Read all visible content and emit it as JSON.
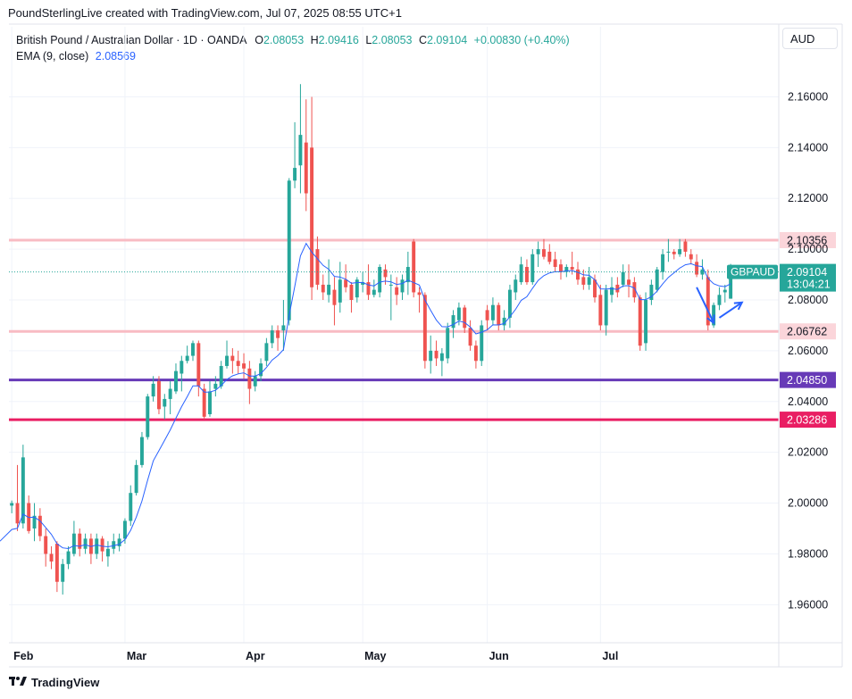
{
  "header": {
    "attribution": "PoundSterlingLive created with TradingView.com, Jul 07, 2025 08:55 UTC+1"
  },
  "legend": {
    "symbol_line": "British Pound / Australian Dollar · 1D · OANDA",
    "o_label": "O",
    "o_value": "2.08053",
    "h_label": "H",
    "h_value": "2.09416",
    "l_label": "L",
    "l_value": "2.08053",
    "c_label": "C",
    "c_value": "2.09104",
    "change": "+0.00830 (+0.40%)",
    "ema_label": "EMA (9, close)",
    "ema_value": "2.08569"
  },
  "currency": "AUD",
  "footer": {
    "brand": "TradingView"
  },
  "colors": {
    "up": "#26a69a",
    "down": "#ef5350",
    "ema": "#2962ff",
    "resistance": "#f8bbc3",
    "support_purple": "#673ab7",
    "support_crimson": "#e91e63"
  },
  "chart_data": {
    "type": "candlestick",
    "symbol": "GBPAUD",
    "ylim": [
      1.945,
      2.17
    ],
    "x_ticks": [
      "Feb",
      "Mar",
      "Apr",
      "May",
      "Jun",
      "Jul"
    ],
    "x_tick_index": [
      0,
      20,
      41,
      62,
      84,
      104
    ],
    "y_ticks": [
      "1.96000",
      "1.98000",
      "2.00000",
      "2.02000",
      "2.04000",
      "2.06000",
      "2.08000",
      "2.10000",
      "2.12000",
      "2.14000",
      "2.16000"
    ],
    "horizontal_levels": [
      {
        "value": 2.10356,
        "label": "2.10356",
        "color": "#f8bbc3",
        "label_bg": "#fbd5da",
        "label_color": "#131722",
        "width": 3
      },
      {
        "value": 2.06762,
        "label": "2.06762",
        "color": "#f8bbc3",
        "label_bg": "#fbd5da",
        "label_color": "#131722",
        "width": 3
      },
      {
        "value": 2.0485,
        "label": "2.04850",
        "color": "#673ab7",
        "label_bg": "#673ab7",
        "label_color": "#ffffff",
        "width": 3
      },
      {
        "value": 2.03286,
        "label": "2.03286",
        "color": "#e91e63",
        "label_bg": "#e91e63",
        "label_color": "#ffffff",
        "width": 3
      }
    ],
    "last_price": {
      "value": 2.09104,
      "symbol_label": "GBPAUD",
      "price_label": "2.09104",
      "countdown": "13:04:21"
    },
    "ema_period": 9,
    "candles": [
      [
        1.999,
        2.001,
        1.996,
        2.0
      ],
      [
        2.0,
        2.015,
        1.989,
        1.992
      ],
      [
        1.992,
        2.023,
        1.99,
        2.018
      ],
      [
        2.0,
        2.003,
        1.988,
        1.989
      ],
      [
        1.99,
        2.0,
        1.985,
        1.995
      ],
      [
        1.995,
        1.998,
        1.985,
        1.987
      ],
      [
        1.987,
        1.99,
        1.975,
        1.98
      ],
      [
        1.98,
        1.983,
        1.974,
        1.977
      ],
      [
        1.984,
        1.985,
        1.965,
        1.969
      ],
      [
        1.969,
        1.978,
        1.964,
        1.976
      ],
      [
        1.976,
        1.983,
        1.974,
        1.981
      ],
      [
        1.98,
        1.993,
        1.979,
        1.988
      ],
      [
        1.988,
        1.99,
        1.979,
        1.982
      ],
      [
        1.982,
        1.988,
        1.98,
        1.986
      ],
      [
        1.986,
        1.988,
        1.976,
        1.98
      ],
      [
        1.98,
        1.988,
        1.978,
        1.986
      ],
      [
        1.986,
        1.987,
        1.977,
        1.981
      ],
      [
        1.979,
        1.985,
        1.975,
        1.982
      ],
      [
        1.982,
        1.988,
        1.98,
        1.985
      ],
      [
        1.983,
        1.988,
        1.981,
        1.986
      ],
      [
        1.986,
        1.994,
        1.984,
        1.993
      ],
      [
        1.993,
        2.007,
        1.991,
        2.004
      ],
      [
        2.004,
        2.017,
        2.003,
        2.015
      ],
      [
        2.015,
        2.028,
        2.014,
        2.026
      ],
      [
        2.026,
        2.043,
        2.025,
        2.042
      ],
      [
        2.042,
        2.05,
        2.04,
        2.047
      ],
      [
        2.048,
        2.05,
        2.035,
        2.037
      ],
      [
        2.038,
        2.043,
        2.033,
        2.041
      ],
      [
        2.041,
        2.048,
        2.035,
        2.045
      ],
      [
        2.044,
        2.055,
        2.043,
        2.052
      ],
      [
        2.051,
        2.058,
        2.044,
        2.056
      ],
      [
        2.056,
        2.062,
        2.055,
        2.058
      ],
      [
        2.058,
        2.064,
        2.056,
        2.063
      ],
      [
        2.063,
        2.064,
        2.042,
        2.046
      ],
      [
        2.045,
        2.047,
        2.033,
        2.034
      ],
      [
        2.035,
        2.048,
        2.034,
        2.044
      ],
      [
        2.045,
        2.05,
        2.042,
        2.047
      ],
      [
        2.046,
        2.056,
        2.045,
        2.054
      ],
      [
        2.054,
        2.064,
        2.053,
        2.058
      ],
      [
        2.058,
        2.061,
        2.051,
        2.056
      ],
      [
        2.056,
        2.06,
        2.051,
        2.054
      ],
      [
        2.055,
        2.059,
        2.049,
        2.053
      ],
      [
        2.053,
        2.056,
        2.039,
        2.045
      ],
      [
        2.046,
        2.052,
        2.044,
        2.05
      ],
      [
        2.05,
        2.057,
        2.048,
        2.055
      ],
      [
        2.056,
        2.065,
        2.054,
        2.063
      ],
      [
        2.063,
        2.07,
        2.061,
        2.068
      ],
      [
        2.068,
        2.07,
        2.06,
        2.065
      ],
      [
        2.068,
        2.08,
        2.06,
        2.07
      ],
      [
        2.072,
        2.128,
        2.07,
        2.127
      ],
      [
        2.127,
        2.15,
        2.124,
        2.132
      ],
      [
        2.133,
        2.165,
        2.122,
        2.145
      ],
      [
        2.142,
        2.159,
        2.115,
        2.122
      ],
      [
        2.14,
        2.16,
        2.08,
        2.085
      ],
      [
        2.1,
        2.105,
        2.084,
        2.086
      ],
      [
        2.086,
        2.09,
        2.08,
        2.083
      ],
      [
        2.082,
        2.096,
        2.079,
        2.086
      ],
      [
        2.084,
        2.089,
        2.07,
        2.078
      ],
      [
        2.079,
        2.095,
        2.075,
        2.088
      ],
      [
        2.088,
        2.094,
        2.083,
        2.085
      ],
      [
        2.086,
        2.087,
        2.075,
        2.08
      ],
      [
        2.081,
        2.089,
        2.079,
        2.088
      ],
      [
        2.086,
        2.091,
        2.083,
        2.087
      ],
      [
        2.087,
        2.094,
        2.08,
        2.082
      ],
      [
        2.082,
        2.088,
        2.081,
        2.084
      ],
      [
        2.083,
        2.094,
        2.081,
        2.093
      ],
      [
        2.092,
        2.094,
        2.086,
        2.089
      ],
      [
        2.086,
        2.09,
        2.072,
        2.086
      ],
      [
        2.085,
        2.089,
        2.078,
        2.082
      ],
      [
        2.083,
        2.09,
        2.08,
        2.088
      ],
      [
        2.087,
        2.099,
        2.082,
        2.093
      ],
      [
        2.103,
        2.104,
        2.081,
        2.083
      ],
      [
        2.083,
        2.085,
        2.075,
        2.082
      ],
      [
        2.082,
        2.083,
        2.053,
        2.056
      ],
      [
        2.056,
        2.066,
        2.051,
        2.06
      ],
      [
        2.06,
        2.064,
        2.054,
        2.057
      ],
      [
        2.056,
        2.061,
        2.05,
        2.059
      ],
      [
        2.057,
        2.071,
        2.055,
        2.069
      ],
      [
        2.069,
        2.076,
        2.065,
        2.074
      ],
      [
        2.072,
        2.079,
        2.07,
        2.077
      ],
      [
        2.077,
        2.078,
        2.067,
        2.069
      ],
      [
        2.069,
        2.072,
        2.06,
        2.062
      ],
      [
        2.062,
        2.064,
        2.053,
        2.056
      ],
      [
        2.056,
        2.072,
        2.054,
        2.07
      ],
      [
        2.076,
        2.078,
        2.068,
        2.072
      ],
      [
        2.072,
        2.081,
        2.07,
        2.078
      ],
      [
        2.078,
        2.079,
        2.068,
        2.07
      ],
      [
        2.07,
        2.076,
        2.068,
        2.073
      ],
      [
        2.073,
        2.086,
        2.069,
        2.084
      ],
      [
        2.083,
        2.09,
        2.08,
        2.088
      ],
      [
        2.087,
        2.097,
        2.086,
        2.094
      ],
      [
        2.093,
        2.096,
        2.086,
        2.087
      ],
      [
        2.087,
        2.1,
        2.086,
        2.098
      ],
      [
        2.098,
        2.103,
        2.093,
        2.1
      ],
      [
        2.1,
        2.104,
        2.096,
        2.097
      ],
      [
        2.099,
        2.102,
        2.094,
        2.095
      ],
      [
        2.096,
        2.099,
        2.091,
        2.093
      ],
      [
        2.094,
        2.096,
        2.088,
        2.091
      ],
      [
        2.091,
        2.094,
        2.089,
        2.093
      ],
      [
        2.093,
        2.099,
        2.09,
        2.092
      ],
      [
        2.092,
        2.095,
        2.086,
        2.088
      ],
      [
        2.089,
        2.092,
        2.084,
        2.086
      ],
      [
        2.086,
        2.093,
        2.084,
        2.089
      ],
      [
        2.088,
        2.09,
        2.079,
        2.081
      ],
      [
        2.082,
        2.086,
        2.068,
        2.07
      ],
      [
        2.07,
        2.086,
        2.066,
        2.084
      ],
      [
        2.082,
        2.089,
        2.079,
        2.085
      ],
      [
        2.086,
        2.089,
        2.081,
        2.083
      ],
      [
        2.086,
        2.094,
        2.085,
        2.091
      ],
      [
        2.088,
        2.094,
        2.081,
        2.086
      ],
      [
        2.087,
        2.089,
        2.079,
        2.081
      ],
      [
        2.081,
        2.082,
        2.06,
        2.062
      ],
      [
        2.063,
        2.083,
        2.06,
        2.08
      ],
      [
        2.08,
        2.088,
        2.078,
        2.086
      ],
      [
        2.084,
        2.093,
        2.083,
        2.092
      ],
      [
        2.091,
        2.1,
        2.088,
        2.098
      ],
      [
        2.099,
        2.104,
        2.095,
        2.099
      ],
      [
        2.099,
        2.1,
        2.096,
        2.098
      ],
      [
        2.098,
        2.104,
        2.097,
        2.1
      ],
      [
        2.103,
        2.104,
        2.097,
        2.099
      ],
      [
        2.098,
        2.1,
        2.094,
        2.096
      ],
      [
        2.095,
        2.098,
        2.089,
        2.09
      ],
      [
        2.09,
        2.096,
        2.088,
        2.092
      ],
      [
        2.089,
        2.092,
        2.068,
        2.07
      ],
      [
        2.07,
        2.079,
        2.069,
        2.078
      ],
      [
        2.078,
        2.085,
        2.076,
        2.082
      ],
      [
        2.083,
        2.086,
        2.079,
        2.084
      ],
      [
        2.0805,
        2.0942,
        2.0805,
        2.091
      ]
    ],
    "annotations": [
      {
        "type": "arrow",
        "color": "#2962ff",
        "from": [
          121,
          2.085
        ],
        "to": [
          124,
          2.071
        ]
      },
      {
        "type": "arrow",
        "color": "#2962ff",
        "from": [
          125,
          2.073
        ],
        "to": [
          129,
          2.079
        ]
      }
    ]
  }
}
